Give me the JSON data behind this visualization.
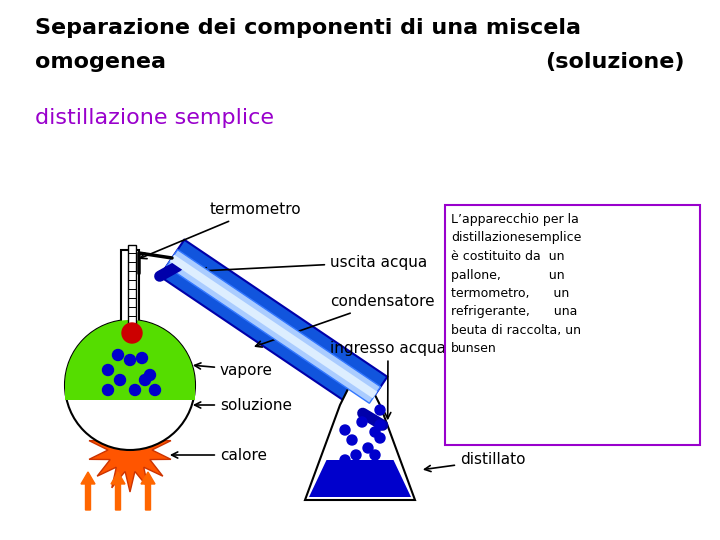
{
  "title_line1": "Separazione dei componenti di una miscela",
  "title_line2_left": "omogenea",
  "title_line2_right": "(soluzione)",
  "subtitle": "distillazione semplice",
  "subtitle_color": "#9900cc",
  "title_color": "#000000",
  "bg_color": "#ffffff",
  "box_text": "L’apparecchio per la\ndistillazionesemplice\nè costituito da  un\npallone,            un\ntermometro,      un\nrefrigerante,      una\nbeuta di raccolta, un\nbunsen",
  "box_border_color": "#9900cc",
  "label_fontsize": 11,
  "title_fontsize": 16
}
